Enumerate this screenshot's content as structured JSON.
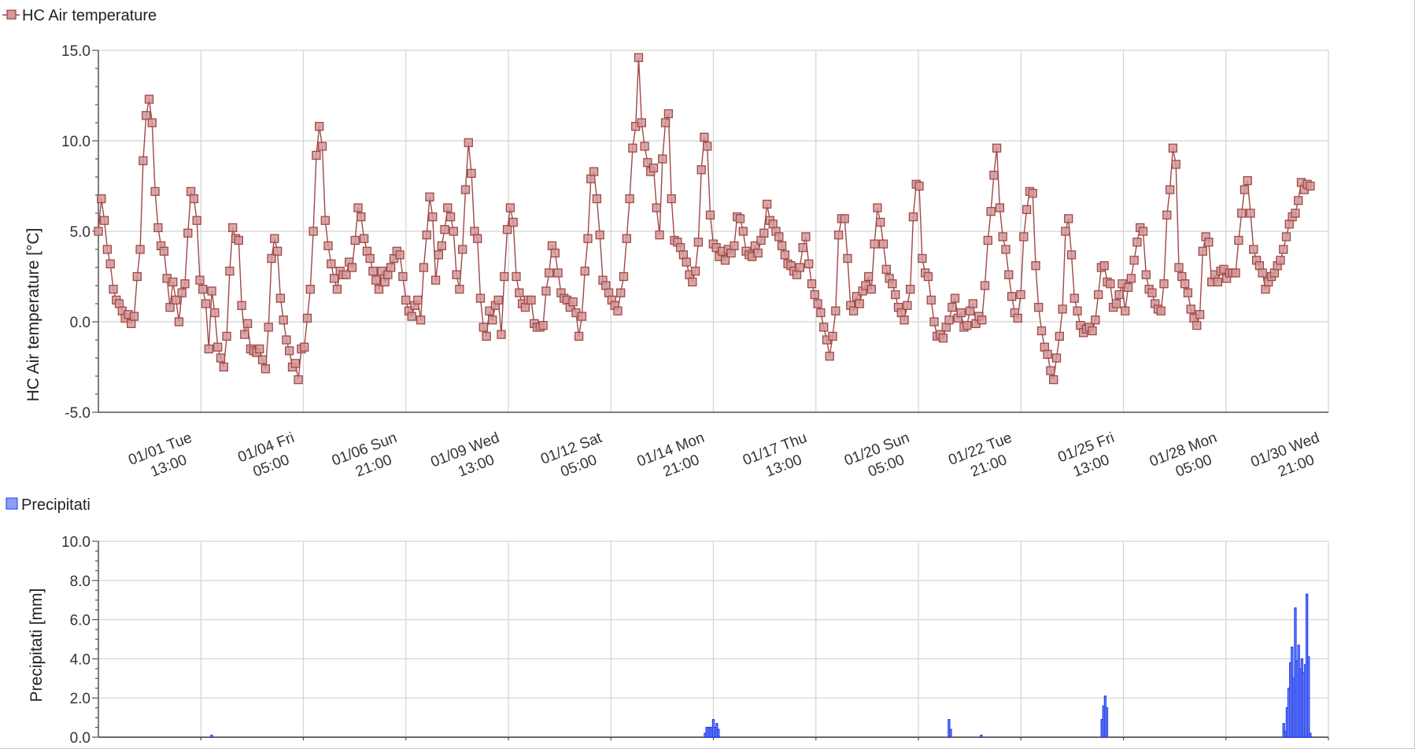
{
  "chart_data": [
    {
      "type": "line",
      "legend": "HC Air temperature",
      "legend_placement": "top-left",
      "ylabel": "HC Air temperature [°C]",
      "ylim": [
        -5.0,
        15.0
      ],
      "yticks": [
        "15.0",
        "10.0",
        "5.0",
        "0.0",
        "-5.0"
      ],
      "ytick_values": [
        15,
        10,
        5,
        0,
        -5
      ],
      "xlim_hours": [
        0,
        744
      ],
      "xticks": [
        {
          "l1": "01/01 Tue",
          "l2": "13:00"
        },
        {
          "l1": "01/04 Fri",
          "l2": "05:00"
        },
        {
          "l1": "01/06 Sun",
          "l2": "21:00"
        },
        {
          "l1": "01/09 Wed",
          "l2": "13:00"
        },
        {
          "l1": "01/12 Sat",
          "l2": "05:00"
        },
        {
          "l1": "01/14 Mon",
          "l2": "21:00"
        },
        {
          "l1": "01/17 Thu",
          "l2": "13:00"
        },
        {
          "l1": "01/20 Sun",
          "l2": "05:00"
        },
        {
          "l1": "01/22 Tue",
          "l2": "21:00"
        },
        {
          "l1": "01/25 Fri",
          "l2": "13:00"
        },
        {
          "l1": "01/28 Mon",
          "l2": "05:00"
        },
        {
          "l1": "01/30 Wed",
          "l2": "21:00"
        }
      ],
      "xtick_hours": [
        62,
        124,
        186,
        248,
        310,
        372,
        434,
        496,
        558,
        620,
        682,
        744
      ],
      "grid": true,
      "color": "#a04848",
      "marker_fill": "#d49a9a",
      "series": [
        {
          "name": "HC Air temperature",
          "values": [
            5.0,
            6.8,
            5.6,
            4.0,
            3.2,
            1.8,
            1.2,
            1.0,
            0.6,
            0.2,
            0.4,
            -0.1,
            0.3,
            2.5,
            4.0,
            8.9,
            11.4,
            12.3,
            11.0,
            7.2,
            5.2,
            4.2,
            3.9,
            2.4,
            0.8,
            2.2,
            1.2,
            0.0,
            1.6,
            2.1,
            4.9,
            7.2,
            6.8,
            5.6,
            2.3,
            1.8,
            1.0,
            -1.5,
            1.7,
            0.5,
            -1.4,
            -2.0,
            -2.5,
            -0.8,
            2.8,
            5.2,
            4.6,
            4.5,
            0.9,
            -0.7,
            -0.1,
            -1.5,
            -1.6,
            -1.7,
            -1.5,
            -2.1,
            -2.6,
            -0.3,
            3.5,
            4.6,
            3.9,
            1.3,
            0.1,
            -1.0,
            -1.6,
            -2.5,
            -2.3,
            -3.2,
            -1.5,
            -1.4,
            0.2,
            1.8,
            5.0,
            9.2,
            10.8,
            9.7,
            5.6,
            4.2,
            3.2,
            2.4,
            1.8,
            2.8,
            2.6,
            2.6,
            3.3,
            3.0,
            4.5,
            6.3,
            5.8,
            4.6,
            3.9,
            3.5,
            2.8,
            2.3,
            1.8,
            2.8,
            2.2,
            2.6,
            3.0,
            3.5,
            3.9,
            3.7,
            2.5,
            1.2,
            0.6,
            0.3,
            0.9,
            1.2,
            0.1,
            3.0,
            4.8,
            6.9,
            5.8,
            2.3,
            3.7,
            4.2,
            5.1,
            6.3,
            5.8,
            5.0,
            2.6,
            1.8,
            4.0,
            7.3,
            9.9,
            8.2,
            5.0,
            4.6,
            1.3,
            -0.3,
            -0.8,
            0.6,
            0.1,
            0.9,
            1.2,
            -0.7,
            2.5,
            5.1,
            6.3,
            5.5,
            2.5,
            1.6,
            1.0,
            0.8,
            1.2,
            1.2,
            -0.1,
            -0.3,
            -0.3,
            -0.2,
            1.7,
            2.7,
            4.2,
            3.8,
            2.7,
            1.6,
            1.3,
            1.2,
            0.8,
            1.1,
            0.5,
            -0.8,
            0.3,
            2.8,
            4.6,
            7.9,
            8.3,
            6.8,
            4.8,
            2.3,
            2.0,
            1.6,
            1.2,
            0.9,
            0.6,
            1.6,
            2.5,
            4.6,
            6.8,
            9.6,
            10.8,
            14.6,
            11.0,
            9.7,
            8.8,
            8.3,
            8.5,
            6.3,
            4.8,
            9.0,
            11.0,
            11.5,
            6.8,
            4.5,
            4.4,
            4.1,
            3.7,
            3.3,
            2.6,
            2.2,
            2.8,
            4.4,
            8.4,
            10.2,
            9.7,
            5.9,
            4.3,
            4.1,
            3.6,
            3.9,
            3.4,
            4.0,
            3.8,
            4.2,
            5.8,
            5.7,
            5.0,
            3.9,
            3.7,
            3.6,
            4.2,
            3.8,
            4.5,
            4.9,
            6.5,
            5.6,
            5.4,
            5.0,
            4.7,
            4.2,
            3.7,
            3.2,
            3.1,
            2.8,
            2.6,
            3.0,
            4.1,
            4.7,
            3.2,
            2.1,
            1.5,
            1.0,
            0.5,
            -0.3,
            -1.0,
            -1.9,
            -0.8,
            0.6,
            4.8,
            5.7,
            5.7,
            3.5,
            0.9,
            0.6,
            1.4,
            1.0,
            1.7,
            2.0,
            2.5,
            1.8,
            4.3,
            6.3,
            5.5,
            4.3,
            2.9,
            2.4,
            2.1,
            1.5,
            0.8,
            0.5,
            0.1,
            0.9,
            1.8,
            5.8,
            7.6,
            7.5,
            3.5,
            2.7,
            2.5,
            1.2,
            0.0,
            -0.8,
            -0.7,
            -0.9,
            -0.3,
            0.1,
            0.8,
            1.3,
            0.2,
            0.5,
            -0.3,
            -0.2,
            0.6,
            1.0,
            -0.1,
            0.3,
            0.1,
            2.0,
            4.5,
            6.1,
            8.1,
            9.6,
            6.3,
            4.7,
            4.0,
            2.6,
            1.4,
            0.5,
            0.2,
            1.5,
            4.7,
            6.2,
            7.2,
            7.1,
            3.1,
            0.8,
            -0.5,
            -1.4,
            -1.8,
            -2.7,
            -3.2,
            -2.0,
            -0.8,
            0.7,
            5.0,
            5.7,
            3.7,
            1.3,
            0.6,
            -0.2,
            -0.6,
            -0.4,
            -0.3,
            -0.5,
            0.1,
            1.5,
            3.0,
            3.1,
            2.2,
            2.1,
            0.8,
            1.0,
            1.5,
            2.1,
            0.6,
            1.9,
            2.4,
            3.4,
            4.4,
            5.2,
            5.0,
            2.6,
            1.8,
            1.6,
            1.0,
            0.7,
            0.6,
            2.1,
            5.9,
            7.3,
            9.6,
            8.7,
            3.0,
            2.5,
            2.1,
            1.6,
            0.7,
            0.2,
            -0.2,
            0.4,
            3.9,
            4.7,
            4.4,
            2.2,
            2.6,
            2.2,
            2.8,
            2.9,
            2.4,
            2.7,
            2.7,
            2.7,
            4.5,
            6.0,
            7.3,
            7.8,
            6.0,
            4.0,
            3.4,
            3.1,
            2.7,
            1.8,
            2.2,
            2.5,
            2.7,
            3.1,
            3.4,
            4.0,
            4.7,
            5.4,
            5.8,
            6.0,
            6.7,
            7.7,
            7.3,
            7.6,
            7.5
          ]
        }
      ]
    },
    {
      "type": "bar",
      "legend": "Precipitati",
      "legend_placement": "top-left",
      "ylabel": "Precipitati [mm]",
      "ylim": [
        0.0,
        10.0
      ],
      "yticks": [
        "10.0",
        "8.0",
        "6.0",
        "4.0",
        "2.0",
        "0.0"
      ],
      "ytick_values": [
        10,
        8,
        6,
        4,
        2,
        0
      ],
      "grid": true,
      "color": "#1c3cf0",
      "fill": "#8f9cf5",
      "series": [
        {
          "name": "Precipitati",
          "bars_hours_mm": [
            [
              68.5,
              0.1
            ],
            [
              367.0,
              0.2
            ],
            [
              368.0,
              0.5
            ],
            [
              369.0,
              0.5
            ],
            [
              370.0,
              0.5
            ],
            [
              371.0,
              0.5
            ],
            [
              372.0,
              0.9
            ],
            [
              373.0,
              0.5
            ],
            [
              374.0,
              0.7
            ],
            [
              375.0,
              0.4
            ],
            [
              514.5,
              0.9
            ],
            [
              515.5,
              0.4
            ],
            [
              534.0,
              0.1
            ],
            [
              607.0,
              0.9
            ],
            [
              608.0,
              1.6
            ],
            [
              609.0,
              2.1
            ],
            [
              610.0,
              1.5
            ],
            [
              717.0,
              0.7
            ],
            [
              718.0,
              0.3
            ],
            [
              719.0,
              1.5
            ],
            [
              720.0,
              2.5
            ],
            [
              721.0,
              3.8
            ],
            [
              722.0,
              4.6
            ],
            [
              723.0,
              3.0
            ],
            [
              724.0,
              6.6
            ],
            [
              725.0,
              3.9
            ],
            [
              726.0,
              4.7
            ],
            [
              727.0,
              3.5
            ],
            [
              728.0,
              4.0
            ],
            [
              729.0,
              3.3
            ],
            [
              730.0,
              3.7
            ],
            [
              731.0,
              7.3
            ],
            [
              732.0,
              4.1
            ],
            [
              733.0,
              0.2
            ]
          ]
        }
      ]
    }
  ]
}
